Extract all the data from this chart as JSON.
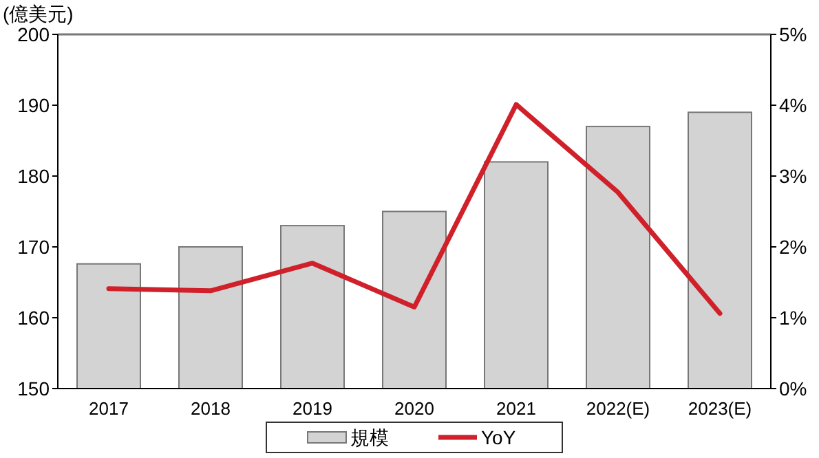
{
  "chart_data": {
    "type": "bar",
    "ylabel": "(億美元)",
    "categories": [
      "2017",
      "2018",
      "2019",
      "2020",
      "2021",
      "2022(E)",
      "2023(E)"
    ],
    "series": [
      {
        "name": "規模",
        "color": "#d3d3d3",
        "values": [
          167.6,
          170,
          173,
          175,
          182,
          187,
          189
        ]
      },
      {
        "name": "YoY",
        "type": "line",
        "axis": "y2",
        "color": "#d0202a",
        "values": [
          1.41,
          1.38,
          1.77,
          1.15,
          4.01,
          2.77,
          1.06
        ]
      }
    ],
    "ylim": [
      150,
      200
    ],
    "yticks": [
      150,
      160,
      170,
      180,
      190,
      200
    ],
    "y2lim": [
      0,
      5
    ],
    "y2ticks": [
      {
        "value": 0,
        "label": "0%"
      },
      {
        "value": 1,
        "label": "1%"
      },
      {
        "value": 2,
        "label": "2%"
      },
      {
        "value": 3,
        "label": "3%"
      },
      {
        "value": 4,
        "label": "4%"
      },
      {
        "value": 5,
        "label": "5%"
      }
    ],
    "grid": false,
    "legend": "bottom",
    "marker": "none",
    "line_style": "solid"
  }
}
